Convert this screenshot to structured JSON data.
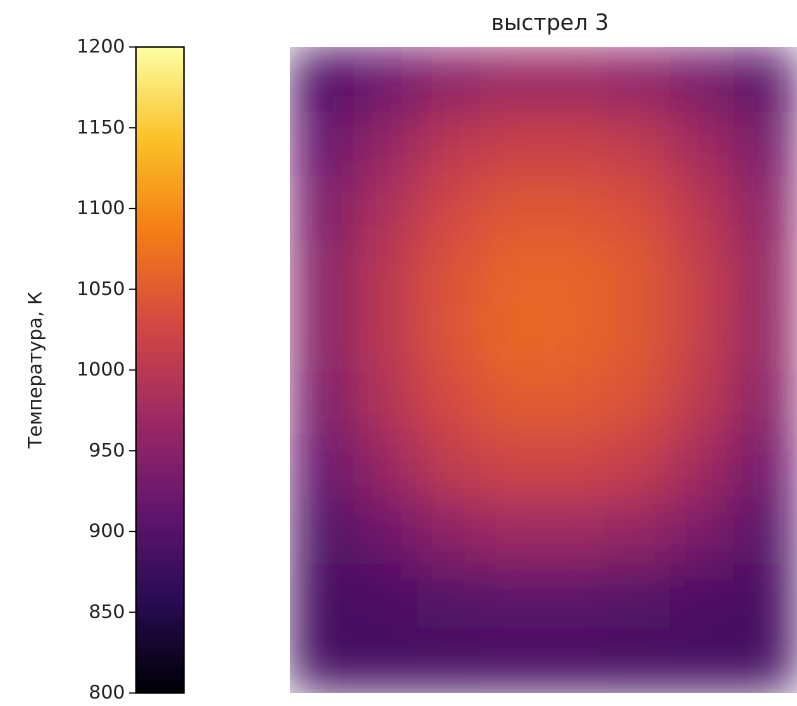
{
  "chart_data": {
    "type": "heatmap",
    "title": "выстрел 3",
    "colorbar_label": "Температура, К",
    "colormap": "inferno",
    "clim": [
      800,
      1200
    ],
    "cticks": [
      800,
      850,
      900,
      950,
      1000,
      1050,
      1100,
      1150,
      1200
    ],
    "z": [
      [
        890,
        920,
        950,
        965,
        965,
        955,
        930,
        900
      ],
      [
        915,
        960,
        1000,
        1015,
        1015,
        1005,
        975,
        930
      ],
      [
        935,
        985,
        1025,
        1045,
        1045,
        1035,
        1000,
        950
      ],
      [
        945,
        1000,
        1040,
        1060,
        1060,
        1048,
        1012,
        960
      ],
      [
        945,
        1000,
        1042,
        1062,
        1060,
        1048,
        1012,
        958
      ],
      [
        935,
        990,
        1030,
        1050,
        1050,
        1038,
        1002,
        948
      ],
      [
        915,
        965,
        1005,
        1022,
        1022,
        1010,
        975,
        925
      ],
      [
        895,
        925,
        955,
        970,
        970,
        960,
        935,
        900
      ],
      [
        885,
        890,
        900,
        905,
        905,
        900,
        892,
        885
      ],
      [
        883,
        883,
        884,
        885,
        885,
        884,
        883,
        883
      ]
    ]
  }
}
